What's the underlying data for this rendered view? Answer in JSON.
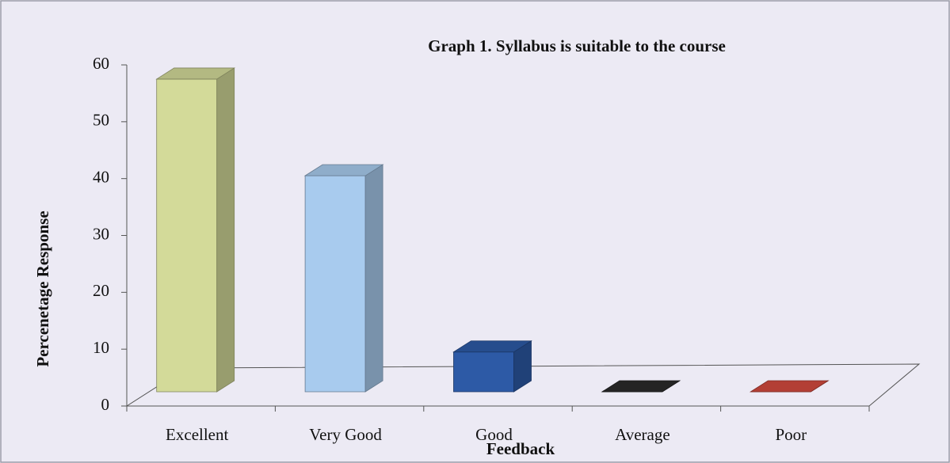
{
  "chart_data": {
    "type": "bar3d",
    "title": "Graph 1. Syllabus is suitable to the course",
    "xlabel": "Feedback",
    "ylabel": "Percenetage Response",
    "categories": [
      "Excellent",
      "Very Good",
      "Good",
      "Average",
      "Poor"
    ],
    "values": [
      55,
      38,
      7,
      0,
      0
    ],
    "colors": [
      "#d3da99",
      "#a8cbee",
      "#2d5aa6",
      "#2a2a2a",
      "#d24a3e"
    ],
    "ylim": [
      0,
      60
    ],
    "yticks": [
      0,
      10,
      20,
      30,
      40,
      50,
      60
    ],
    "grid": false
  }
}
